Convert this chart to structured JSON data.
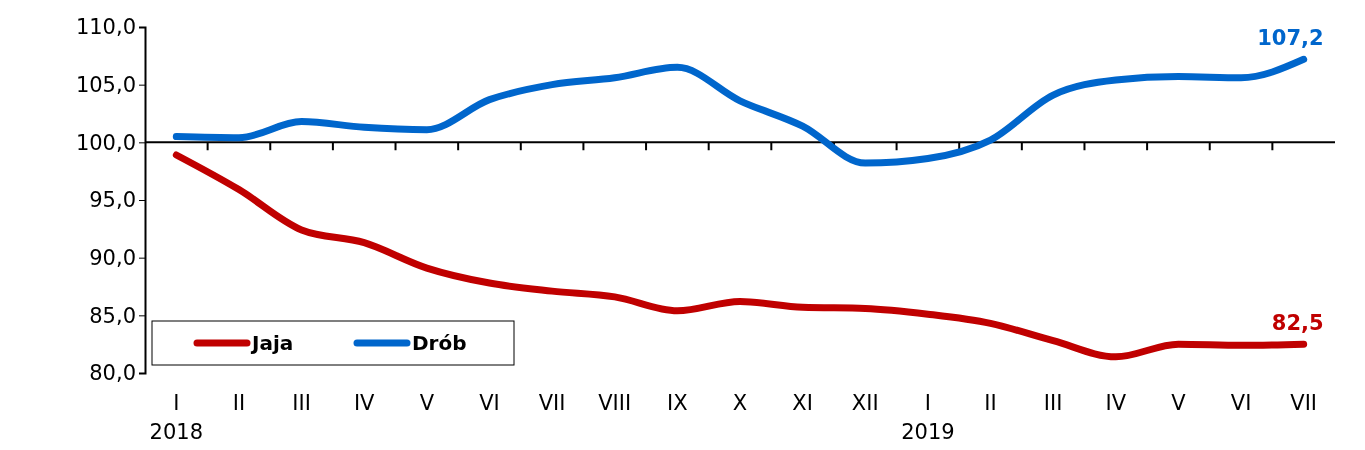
{
  "chart_data": {
    "type": "line",
    "categories": [
      "I\n2018",
      "II",
      "III",
      "IV",
      "V",
      "VI",
      "VII",
      "VIII",
      "IX",
      "X",
      "XI",
      "XII",
      "I\n2019",
      "II",
      "III",
      "IV",
      "V",
      "VI",
      "VII"
    ],
    "series": [
      {
        "name": "Jaja",
        "color": "#c00000",
        "values": [
          98.9,
          95.9,
          92.4,
          91.3,
          89.1,
          87.8,
          87.1,
          86.6,
          85.4,
          86.2,
          85.7,
          85.6,
          85.1,
          84.3,
          82.8,
          81.4,
          82.5,
          82.4,
          82.5
        ],
        "value_labels": [
          null,
          null,
          null,
          null,
          null,
          null,
          null,
          null,
          null,
          null,
          null,
          null,
          null,
          null,
          null,
          null,
          null,
          null,
          "82,5"
        ]
      },
      {
        "name": "Drób",
        "color": "#0066cc",
        "values": [
          100.5,
          100.4,
          101.8,
          101.3,
          101.1,
          103.7,
          105.0,
          105.6,
          106.5,
          103.6,
          101.4,
          98.2,
          98.6,
          100.2,
          104.1,
          105.4,
          105.7,
          105.6,
          107.2
        ],
        "value_labels": [
          null,
          null,
          null,
          null,
          null,
          null,
          null,
          null,
          null,
          null,
          null,
          null,
          null,
          null,
          null,
          null,
          null,
          null,
          "107,2"
        ]
      }
    ],
    "ylim": [
      80,
      110
    ],
    "yticks": [
      {
        "value": 80,
        "label": "80,0"
      },
      {
        "value": 85,
        "label": "85,0"
      },
      {
        "value": 90,
        "label": "90,0"
      },
      {
        "value": 95,
        "label": "95,0"
      },
      {
        "value": 100,
        "label": "100,0"
      },
      {
        "value": 105,
        "label": "105,0"
      },
      {
        "value": 110,
        "label": "110,0"
      }
    ],
    "ref_lines": [
      {
        "axis": "y",
        "value": 100,
        "color": "#000000"
      }
    ],
    "grid": false,
    "legend": "bottom left",
    "marker": "none",
    "line_style": "solid"
  }
}
